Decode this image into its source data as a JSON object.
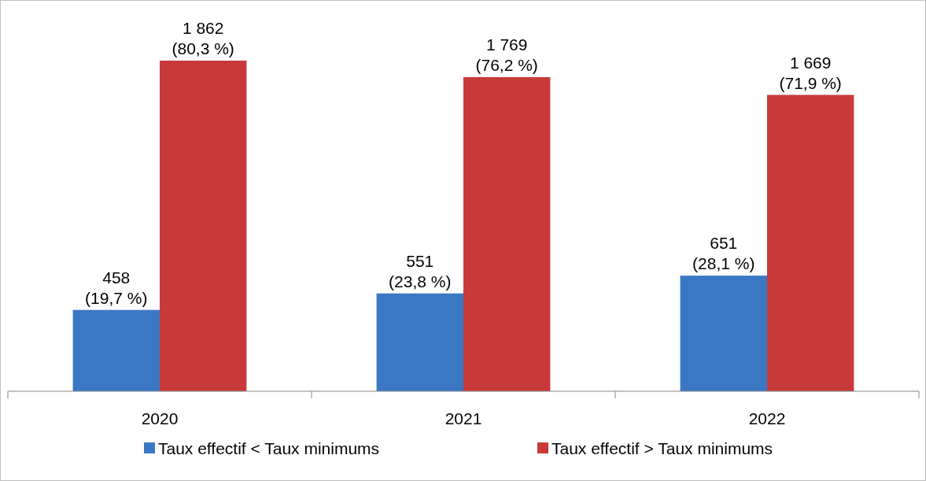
{
  "chart_data": {
    "type": "bar",
    "categories": [
      "2020",
      "2021",
      "2022"
    ],
    "series": [
      {
        "name": "Taux effectif < Taux minimums",
        "color": "#3a78c4",
        "values": [
          458,
          551,
          651
        ],
        "value_labels": [
          "458\n(19,7 %)",
          "551\n(23,8 %)",
          "651\n(28,1 %)"
        ]
      },
      {
        "name": "Taux effectif > Taux minimums",
        "color": "#c83a3a",
        "values": [
          1862,
          1769,
          1669
        ],
        "value_labels": [
          "1 862\n(80,3 %)",
          "1 769\n(76,2 %)",
          "1 669\n(71,9 %)"
        ]
      }
    ],
    "legend": "bottom"
  }
}
